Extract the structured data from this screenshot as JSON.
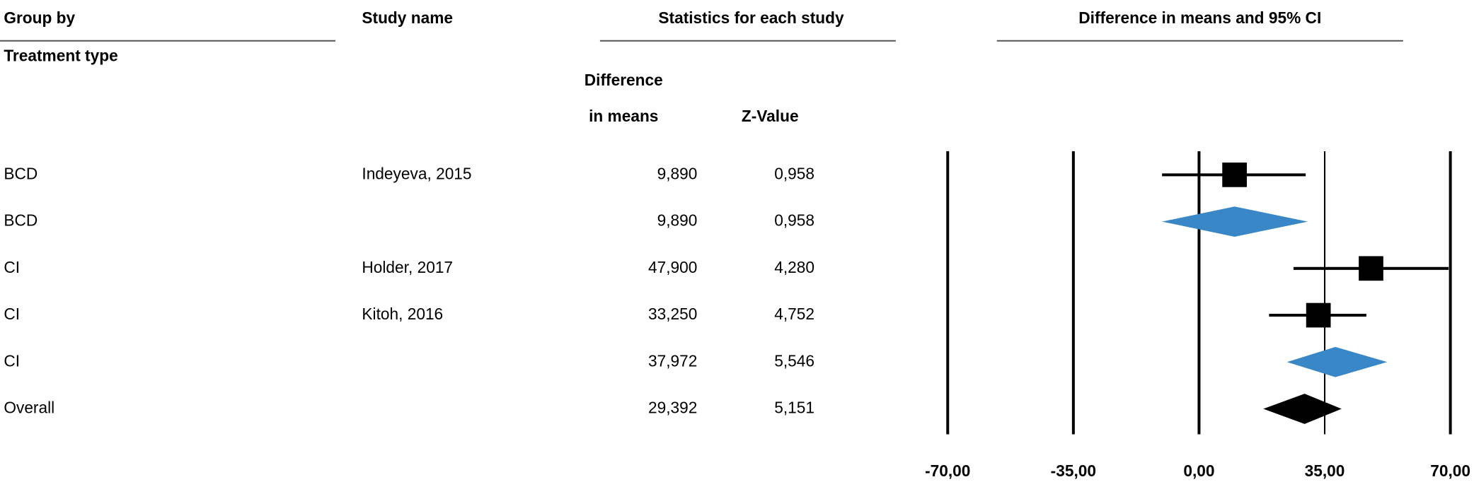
{
  "chart_data": {
    "type": "forest",
    "group_header": "Group by",
    "group_subheader": "Treatment type",
    "study_header": "Study name",
    "stats_header": "Statistics for each study",
    "diff_header": [
      "Difference",
      "in means"
    ],
    "z_header": "Z-Value",
    "plot_header": "Difference in means and 95% CI",
    "groups": [
      "BCD",
      "BCD",
      "CI",
      "CI",
      "CI",
      "Overall"
    ],
    "studies": [
      "Indeyeva, 2015",
      null,
      "Holder, 2017",
      "Kitoh, 2016",
      null,
      null
    ],
    "values": [
      9.89,
      9.89,
      47.9,
      33.25,
      37.972,
      29.392
    ],
    "value_labels": [
      "9,890",
      "9,890",
      "47,900",
      "33,250",
      "37,972",
      "29,392"
    ],
    "z_values": [
      "0,958",
      "0,958",
      "4,280",
      "4,752",
      "5,546",
      "5,151"
    ],
    "lower": [
      -10.3,
      -10.3,
      26.3,
      19.5,
      24.5,
      17.9
    ],
    "upper": [
      29.7,
      30.3,
      69.5,
      46.6,
      52.4,
      39.7
    ],
    "row_kinds": [
      "study",
      "subtotal",
      "study",
      "study",
      "subtotal",
      "overall"
    ],
    "colors": {
      "study": "#000000",
      "subtotal": "#3a87c8",
      "overall": "#000000"
    },
    "xlim": [
      -70,
      70
    ],
    "xticks": [
      {
        "value": -70,
        "label": "-70,00"
      },
      {
        "value": -35,
        "label": "-35,00"
      },
      {
        "value": 0,
        "label": "0,00"
      },
      {
        "value": 35,
        "label": "35,00"
      },
      {
        "value": 70,
        "label": "70,00"
      }
    ]
  }
}
